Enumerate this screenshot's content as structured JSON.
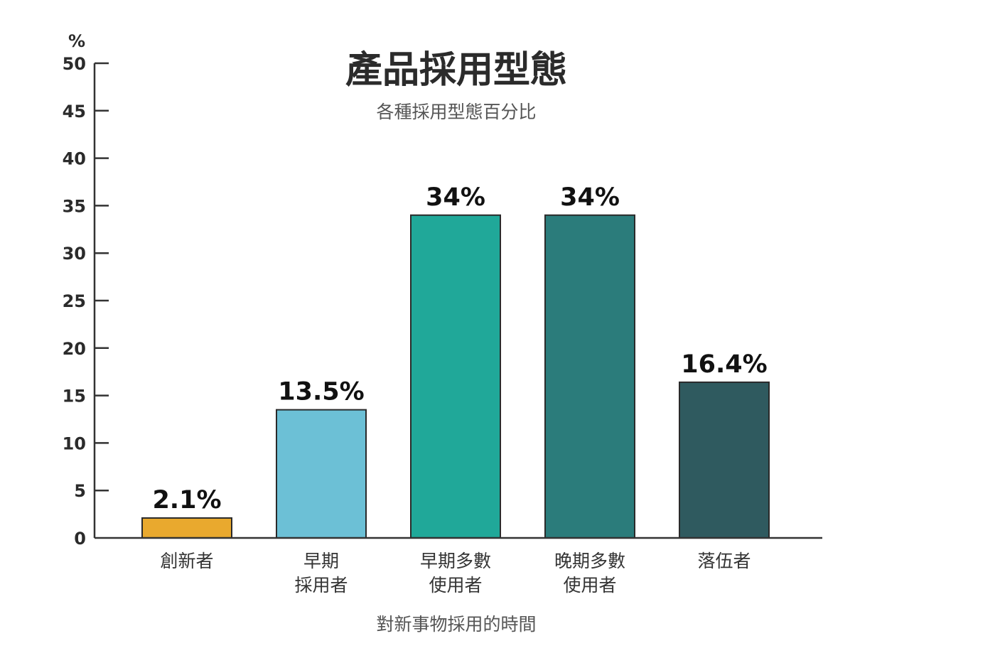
{
  "chart_data": {
    "type": "bar",
    "title": "產品採用型態",
    "subtitle": "各種採用型態百分比",
    "ylabel": "%",
    "xlabel": "對新事物採用的時間",
    "ylim": [
      0,
      50
    ],
    "yticks": [
      0,
      5,
      10,
      15,
      20,
      25,
      30,
      35,
      40,
      45,
      50
    ],
    "grid": false,
    "categories": [
      [
        "創新者"
      ],
      [
        "早期",
        "採用者"
      ],
      [
        "早期多數",
        "使用者"
      ],
      [
        "晚期多數",
        "使用者"
      ],
      [
        "落伍者"
      ]
    ],
    "values": [
      2.1,
      13.5,
      34,
      34,
      16.4
    ],
    "value_labels": [
      "2.1%",
      "13.5%",
      "34%",
      "34%",
      "16.4%"
    ],
    "colors": [
      "#e9a92e",
      "#6cc0d6",
      "#20a899",
      "#2b7c7b",
      "#2f5a5f"
    ]
  }
}
